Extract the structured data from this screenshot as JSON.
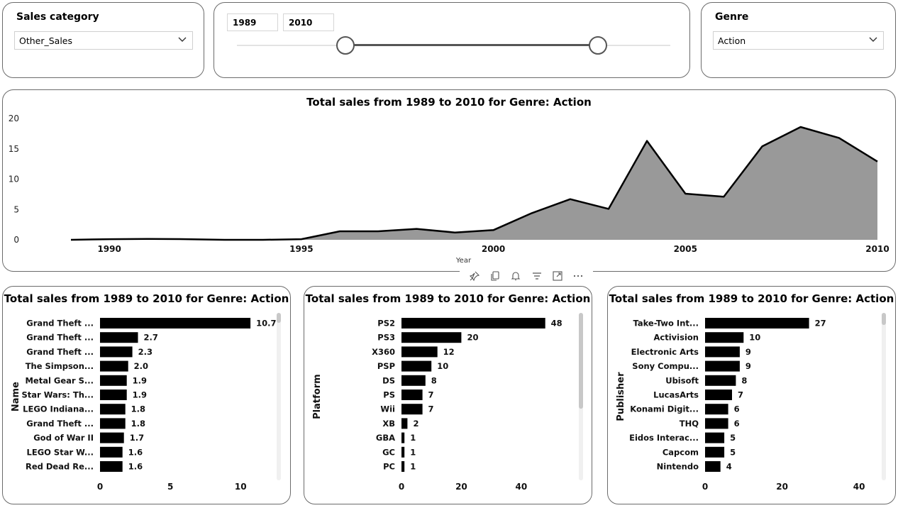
{
  "slicers": {
    "sales_category": {
      "title": "Sales category",
      "value": "Other_Sales"
    },
    "year_range": {
      "start": "1989",
      "end": "2010",
      "min": 1980,
      "max": 2016,
      "low": 1989,
      "high": 2010
    },
    "genre": {
      "title": "Genre",
      "value": "Action"
    }
  },
  "toolbar": {
    "icons": [
      "pin-icon",
      "copy-icon",
      "bell-icon",
      "filter-icon",
      "focus-mode-icon",
      "more-options-icon"
    ]
  },
  "area_chart": {
    "title": "Total sales from 1989 to 2010 for Genre: Action",
    "chart_data": {
      "type": "area",
      "title": "Total sales from 1989 to 2010 for Genre: Action",
      "xlabel": "Year",
      "ylabel": "",
      "x": [
        1989,
        1990,
        1991,
        1992,
        1993,
        1994,
        1995,
        1996,
        1997,
        1998,
        1999,
        2000,
        2001,
        2002,
        2003,
        2004,
        2005,
        2006,
        2007,
        2008,
        2009,
        2010
      ],
      "values": [
        0.0,
        0.1,
        0.15,
        0.1,
        0.0,
        0.0,
        0.1,
        1.4,
        1.4,
        1.8,
        1.2,
        1.6,
        4.4,
        6.7,
        5.1,
        16.3,
        7.6,
        7.1,
        15.4,
        18.6,
        16.8,
        12.9
      ],
      "xticks": [
        "1990",
        "1995",
        "2000",
        "2005",
        "2010"
      ],
      "yticks": [
        "0",
        "5",
        "10",
        "15",
        "20"
      ],
      "xlim": [
        1989,
        2010
      ],
      "ylim": [
        0,
        20
      ],
      "color": "#999999",
      "line_color": "#000000",
      "grid": false,
      "legend": "none"
    }
  },
  "bar_charts": [
    {
      "title": "Total sales from 1989 to 2010 for Genre: Action",
      "chart_data": {
        "type": "bar",
        "orientation": "horizontal",
        "title": "Total sales from 1989 to 2010 for Genre: Action",
        "ylabel": "Name",
        "categories": [
          "Grand Theft ...",
          "Grand Theft ...",
          "Grand Theft ...",
          "The Simpson...",
          "Metal Gear S...",
          "Star Wars: Th...",
          "LEGO Indiana...",
          "Grand Theft ...",
          "God of War II",
          "LEGO Star W...",
          "Red Dead Re..."
        ],
        "values": [
          10.7,
          2.7,
          2.3,
          2.0,
          1.9,
          1.9,
          1.8,
          1.8,
          1.7,
          1.6,
          1.6
        ],
        "labels": [
          "10.7",
          "2.7",
          "2.3",
          "2.0",
          "1.9",
          "1.9",
          "1.8",
          "1.8",
          "1.7",
          "1.6",
          "1.6"
        ],
        "xticks": [
          "0",
          "5",
          "10"
        ],
        "xlim": [
          0,
          11.5
        ],
        "color": "#000000",
        "scroll_thumb": 0.02
      }
    },
    {
      "title": "Total sales from 1989 to 2010 for Genre: Action",
      "chart_data": {
        "type": "bar",
        "orientation": "horizontal",
        "title": "Total sales from 1989 to 2010 for Genre: Action",
        "ylabel": "Platform",
        "categories": [
          "PS2",
          "PS3",
          "X360",
          "PSP",
          "DS",
          "PS",
          "Wii",
          "XB",
          "GBA",
          "GC",
          "PC"
        ],
        "values": [
          48,
          20,
          12,
          10,
          8,
          7,
          7,
          2,
          1,
          1,
          1
        ],
        "labels": [
          "48",
          "20",
          "12",
          "10",
          "8",
          "7",
          "7",
          "2",
          "1",
          "1",
          "1"
        ],
        "xticks": [
          "0",
          "20",
          "40"
        ],
        "xlim": [
          0,
          54
        ],
        "color": "#000000",
        "scroll_thumb": 0.57
      }
    },
    {
      "title": "Total sales from 1989 to 2010 for Genre: Action",
      "chart_data": {
        "type": "bar",
        "orientation": "horizontal",
        "title": "Total sales from 1989 to 2010 for Genre: Action",
        "ylabel": "Publisher",
        "categories": [
          "Take-Two Int...",
          "Activision",
          "Electronic Arts",
          "Sony Compu...",
          "Ubisoft",
          "LucasArts",
          "Konami Digit...",
          "THQ",
          "Eidos Interac...",
          "Capcom",
          "Nintendo"
        ],
        "values": [
          27,
          10,
          9,
          9,
          8,
          7,
          6,
          6,
          5,
          5,
          4
        ],
        "labels": [
          "27",
          "10",
          "9",
          "9",
          "8",
          "7",
          "6",
          "6",
          "5",
          "5",
          "4"
        ],
        "xticks": [
          "0",
          "20",
          "40"
        ],
        "xlim": [
          0,
          42
        ],
        "color": "#000000",
        "scroll_thumb": 0.07
      }
    }
  ]
}
